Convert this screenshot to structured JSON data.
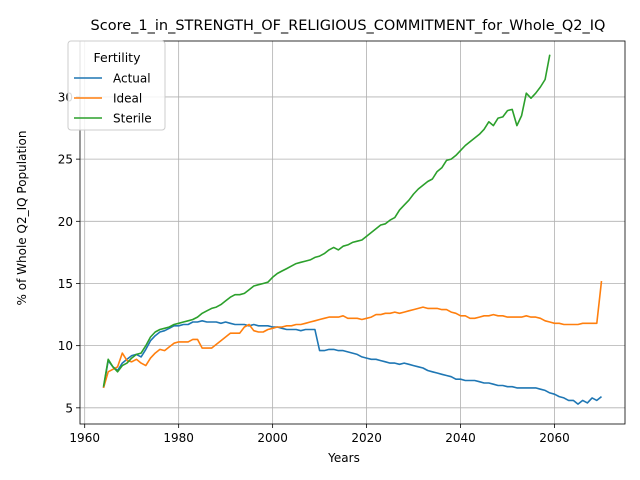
{
  "chart_data": {
    "type": "line",
    "title": "Score_1_in_STRENGTH_OF_RELIGIOUS_COMMITMENT_for_Whole_Q2_IQ",
    "xlabel": "Years",
    "ylabel": "% of Whole Q2_IQ Population",
    "xlim": [
      1959,
      2075
    ],
    "ylim": [
      3.7,
      34.5
    ],
    "xticks": [
      1960,
      1980,
      2000,
      2020,
      2040,
      2060
    ],
    "yticks": [
      5,
      10,
      15,
      20,
      25,
      30
    ],
    "grid": true,
    "legend": {
      "title": "Fertility",
      "position": "top-left"
    },
    "colors": {
      "Actual": "#1f77b4",
      "Ideal": "#ff7f0e",
      "Sterile": "#2ca02c"
    },
    "series": [
      {
        "name": "Actual",
        "points": [
          [
            1964,
            6.6
          ],
          [
            1965,
            8.8
          ],
          [
            1966,
            8.3
          ],
          [
            1967,
            8.0
          ],
          [
            1968,
            8.6
          ],
          [
            1969,
            8.9
          ],
          [
            1970,
            9.2
          ],
          [
            1971,
            9.3
          ],
          [
            1972,
            9.1
          ],
          [
            1973,
            9.7
          ],
          [
            1974,
            10.4
          ],
          [
            1975,
            10.8
          ],
          [
            1976,
            11.1
          ],
          [
            1977,
            11.2
          ],
          [
            1978,
            11.4
          ],
          [
            1979,
            11.6
          ],
          [
            1980,
            11.6
          ],
          [
            1981,
            11.7
          ],
          [
            1982,
            11.7
          ],
          [
            1983,
            11.9
          ],
          [
            1984,
            11.9
          ],
          [
            1985,
            12.0
          ],
          [
            1986,
            11.9
          ],
          [
            1987,
            11.9
          ],
          [
            1988,
            11.9
          ],
          [
            1989,
            11.8
          ],
          [
            1990,
            11.9
          ],
          [
            1991,
            11.8
          ],
          [
            1992,
            11.7
          ],
          [
            1993,
            11.7
          ],
          [
            1994,
            11.7
          ],
          [
            1995,
            11.6
          ],
          [
            1996,
            11.7
          ],
          [
            1997,
            11.6
          ],
          [
            1998,
            11.6
          ],
          [
            1999,
            11.6
          ],
          [
            2000,
            11.5
          ],
          [
            2001,
            11.5
          ],
          [
            2002,
            11.4
          ],
          [
            2003,
            11.3
          ],
          [
            2004,
            11.3
          ],
          [
            2005,
            11.3
          ],
          [
            2006,
            11.2
          ],
          [
            2007,
            11.3
          ],
          [
            2008,
            11.3
          ],
          [
            2009,
            11.3
          ],
          [
            2010,
            9.6
          ],
          [
            2011,
            9.6
          ],
          [
            2012,
            9.7
          ],
          [
            2013,
            9.7
          ],
          [
            2014,
            9.6
          ],
          [
            2015,
            9.6
          ],
          [
            2016,
            9.5
          ],
          [
            2017,
            9.4
          ],
          [
            2018,
            9.3
          ],
          [
            2019,
            9.1
          ],
          [
            2020,
            9.0
          ],
          [
            2021,
            8.9
          ],
          [
            2022,
            8.9
          ],
          [
            2023,
            8.8
          ],
          [
            2024,
            8.7
          ],
          [
            2025,
            8.6
          ],
          [
            2026,
            8.6
          ],
          [
            2027,
            8.5
          ],
          [
            2028,
            8.6
          ],
          [
            2029,
            8.5
          ],
          [
            2030,
            8.4
          ],
          [
            2031,
            8.3
          ],
          [
            2032,
            8.2
          ],
          [
            2033,
            8.0
          ],
          [
            2034,
            7.9
          ],
          [
            2035,
            7.8
          ],
          [
            2036,
            7.7
          ],
          [
            2037,
            7.6
          ],
          [
            2038,
            7.5
          ],
          [
            2039,
            7.3
          ],
          [
            2040,
            7.3
          ],
          [
            2041,
            7.2
          ],
          [
            2042,
            7.2
          ],
          [
            2043,
            7.2
          ],
          [
            2044,
            7.1
          ],
          [
            2045,
            7.0
          ],
          [
            2046,
            7.0
          ],
          [
            2047,
            6.9
          ],
          [
            2048,
            6.8
          ],
          [
            2049,
            6.8
          ],
          [
            2050,
            6.7
          ],
          [
            2051,
            6.7
          ],
          [
            2052,
            6.6
          ],
          [
            2053,
            6.6
          ],
          [
            2054,
            6.6
          ],
          [
            2055,
            6.6
          ],
          [
            2056,
            6.6
          ],
          [
            2057,
            6.5
          ],
          [
            2058,
            6.4
          ],
          [
            2059,
            6.2
          ],
          [
            2060,
            6.1
          ],
          [
            2061,
            5.9
          ],
          [
            2062,
            5.8
          ],
          [
            2063,
            5.6
          ],
          [
            2064,
            5.6
          ],
          [
            2065,
            5.3
          ],
          [
            2066,
            5.6
          ],
          [
            2067,
            5.4
          ],
          [
            2068,
            5.8
          ],
          [
            2069,
            5.6
          ],
          [
            2070,
            5.9
          ]
        ]
      },
      {
        "name": "Ideal",
        "points": [
          [
            1964,
            6.6
          ],
          [
            1965,
            7.9
          ],
          [
            1966,
            8.1
          ],
          [
            1967,
            8.3
          ],
          [
            1968,
            9.4
          ],
          [
            1969,
            8.8
          ],
          [
            1970,
            8.7
          ],
          [
            1971,
            8.9
          ],
          [
            1972,
            8.6
          ],
          [
            1973,
            8.4
          ],
          [
            1974,
            9.0
          ],
          [
            1975,
            9.4
          ],
          [
            1976,
            9.7
          ],
          [
            1977,
            9.6
          ],
          [
            1978,
            9.9
          ],
          [
            1979,
            10.2
          ],
          [
            1980,
            10.3
          ],
          [
            1981,
            10.3
          ],
          [
            1982,
            10.3
          ],
          [
            1983,
            10.5
          ],
          [
            1984,
            10.5
          ],
          [
            1985,
            9.8
          ],
          [
            1986,
            9.8
          ],
          [
            1987,
            9.8
          ],
          [
            1988,
            10.1
          ],
          [
            1989,
            10.4
          ],
          [
            1990,
            10.7
          ],
          [
            1991,
            11.0
          ],
          [
            1992,
            11.0
          ],
          [
            1993,
            11.0
          ],
          [
            1994,
            11.5
          ],
          [
            1995,
            11.7
          ],
          [
            1996,
            11.2
          ],
          [
            1997,
            11.1
          ],
          [
            1998,
            11.1
          ],
          [
            1999,
            11.3
          ],
          [
            2000,
            11.4
          ],
          [
            2001,
            11.5
          ],
          [
            2002,
            11.5
          ],
          [
            2003,
            11.6
          ],
          [
            2004,
            11.6
          ],
          [
            2005,
            11.7
          ],
          [
            2006,
            11.7
          ],
          [
            2007,
            11.8
          ],
          [
            2008,
            11.9
          ],
          [
            2009,
            12.0
          ],
          [
            2010,
            12.1
          ],
          [
            2011,
            12.2
          ],
          [
            2012,
            12.3
          ],
          [
            2013,
            12.3
          ],
          [
            2014,
            12.3
          ],
          [
            2015,
            12.4
          ],
          [
            2016,
            12.2
          ],
          [
            2017,
            12.2
          ],
          [
            2018,
            12.2
          ],
          [
            2019,
            12.1
          ],
          [
            2020,
            12.2
          ],
          [
            2021,
            12.3
          ],
          [
            2022,
            12.5
          ],
          [
            2023,
            12.5
          ],
          [
            2024,
            12.6
          ],
          [
            2025,
            12.6
          ],
          [
            2026,
            12.7
          ],
          [
            2027,
            12.6
          ],
          [
            2028,
            12.7
          ],
          [
            2029,
            12.8
          ],
          [
            2030,
            12.9
          ],
          [
            2031,
            13.0
          ],
          [
            2032,
            13.1
          ],
          [
            2033,
            13.0
          ],
          [
            2034,
            13.0
          ],
          [
            2035,
            13.0
          ],
          [
            2036,
            12.9
          ],
          [
            2037,
            12.9
          ],
          [
            2038,
            12.7
          ],
          [
            2039,
            12.6
          ],
          [
            2040,
            12.4
          ],
          [
            2041,
            12.4
          ],
          [
            2042,
            12.2
          ],
          [
            2043,
            12.2
          ],
          [
            2044,
            12.3
          ],
          [
            2045,
            12.4
          ],
          [
            2046,
            12.4
          ],
          [
            2047,
            12.5
          ],
          [
            2048,
            12.4
          ],
          [
            2049,
            12.4
          ],
          [
            2050,
            12.3
          ],
          [
            2051,
            12.3
          ],
          [
            2052,
            12.3
          ],
          [
            2053,
            12.3
          ],
          [
            2054,
            12.4
          ],
          [
            2055,
            12.3
          ],
          [
            2056,
            12.3
          ],
          [
            2057,
            12.2
          ],
          [
            2058,
            12.0
          ],
          [
            2059,
            11.9
          ],
          [
            2060,
            11.8
          ],
          [
            2061,
            11.8
          ],
          [
            2062,
            11.7
          ],
          [
            2063,
            11.7
          ],
          [
            2064,
            11.7
          ],
          [
            2065,
            11.7
          ],
          [
            2066,
            11.8
          ],
          [
            2067,
            11.8
          ],
          [
            2068,
            11.8
          ],
          [
            2069,
            11.8
          ],
          [
            2070,
            15.2
          ]
        ]
      },
      {
        "name": "Sterile",
        "points": [
          [
            1964,
            6.7
          ],
          [
            1965,
            8.9
          ],
          [
            1966,
            8.3
          ],
          [
            1967,
            7.9
          ],
          [
            1968,
            8.4
          ],
          [
            1969,
            8.6
          ],
          [
            1970,
            9.0
          ],
          [
            1971,
            9.3
          ],
          [
            1972,
            9.4
          ],
          [
            1973,
            10.0
          ],
          [
            1974,
            10.7
          ],
          [
            1975,
            11.1
          ],
          [
            1976,
            11.3
          ],
          [
            1977,
            11.4
          ],
          [
            1978,
            11.5
          ],
          [
            1979,
            11.7
          ],
          [
            1980,
            11.8
          ],
          [
            1981,
            11.9
          ],
          [
            1982,
            12.0
          ],
          [
            1983,
            12.1
          ],
          [
            1984,
            12.3
          ],
          [
            1985,
            12.6
          ],
          [
            1986,
            12.8
          ],
          [
            1987,
            13.0
          ],
          [
            1988,
            13.1
          ],
          [
            1989,
            13.3
          ],
          [
            1990,
            13.6
          ],
          [
            1991,
            13.9
          ],
          [
            1992,
            14.1
          ],
          [
            1993,
            14.1
          ],
          [
            1994,
            14.2
          ],
          [
            1995,
            14.5
          ],
          [
            1996,
            14.8
          ],
          [
            1997,
            14.9
          ],
          [
            1998,
            15.0
          ],
          [
            1999,
            15.1
          ],
          [
            2000,
            15.5
          ],
          [
            2001,
            15.8
          ],
          [
            2002,
            16.0
          ],
          [
            2003,
            16.2
          ],
          [
            2004,
            16.4
          ],
          [
            2005,
            16.6
          ],
          [
            2006,
            16.7
          ],
          [
            2007,
            16.8
          ],
          [
            2008,
            16.9
          ],
          [
            2009,
            17.1
          ],
          [
            2010,
            17.2
          ],
          [
            2011,
            17.4
          ],
          [
            2012,
            17.7
          ],
          [
            2013,
            17.9
          ],
          [
            2014,
            17.7
          ],
          [
            2015,
            18.0
          ],
          [
            2016,
            18.1
          ],
          [
            2017,
            18.3
          ],
          [
            2018,
            18.4
          ],
          [
            2019,
            18.5
          ],
          [
            2020,
            18.8
          ],
          [
            2021,
            19.1
          ],
          [
            2022,
            19.4
          ],
          [
            2023,
            19.7
          ],
          [
            2024,
            19.8
          ],
          [
            2025,
            20.1
          ],
          [
            2026,
            20.3
          ],
          [
            2027,
            20.9
          ],
          [
            2028,
            21.3
          ],
          [
            2029,
            21.7
          ],
          [
            2030,
            22.2
          ],
          [
            2031,
            22.6
          ],
          [
            2032,
            22.9
          ],
          [
            2033,
            23.2
          ],
          [
            2034,
            23.4
          ],
          [
            2035,
            24.0
          ],
          [
            2036,
            24.3
          ],
          [
            2037,
            24.9
          ],
          [
            2038,
            25.0
          ],
          [
            2039,
            25.3
          ],
          [
            2040,
            25.7
          ],
          [
            2041,
            26.1
          ],
          [
            2042,
            26.4
          ],
          [
            2043,
            26.7
          ],
          [
            2044,
            27.0
          ],
          [
            2045,
            27.4
          ],
          [
            2046,
            28.0
          ],
          [
            2047,
            27.7
          ],
          [
            2048,
            28.3
          ],
          [
            2049,
            28.4
          ],
          [
            2050,
            28.9
          ],
          [
            2051,
            29.0
          ],
          [
            2052,
            27.7
          ],
          [
            2053,
            28.5
          ],
          [
            2054,
            30.3
          ],
          [
            2055,
            29.9
          ],
          [
            2056,
            30.3
          ],
          [
            2057,
            30.8
          ],
          [
            2058,
            31.4
          ],
          [
            2059,
            33.4
          ]
        ]
      }
    ]
  }
}
